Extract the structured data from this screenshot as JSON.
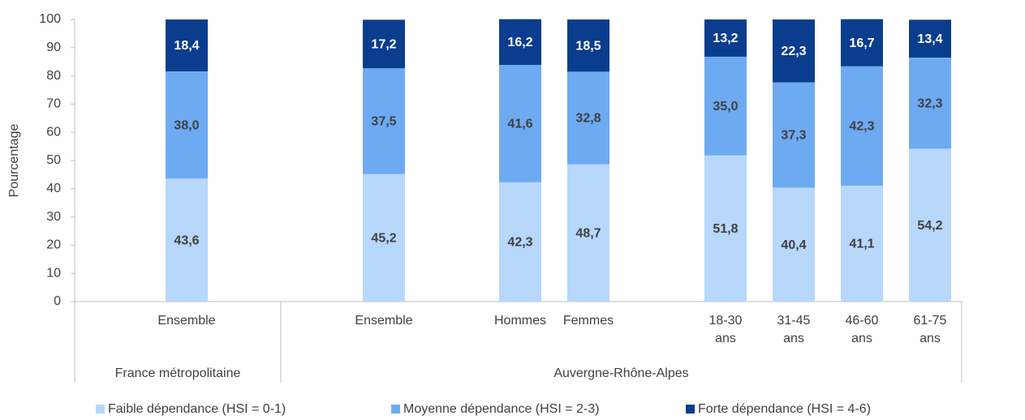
{
  "chart_data": {
    "type": "stacked_bar",
    "y_label": "Pourcentage",
    "categories": [
      "Ensemble",
      "Ensemble",
      "Hommes",
      "Femmes",
      "18-30 ans",
      "31-45 ans",
      "46-60 ans",
      "61-75 ans"
    ],
    "groups": [
      {
        "name": "France métropolitaine",
        "size": 1
      },
      {
        "name": "Auvergne-Rhône-Alpes",
        "size": 7
      }
    ],
    "series": [
      {
        "name": "Faible dépendance (HSI = 0-1)",
        "color": "#b7d7fb",
        "values": [
          43.6,
          45.2,
          42.3,
          48.7,
          51.8,
          40.4,
          41.1,
          54.2
        ],
        "value_labels": [
          "43,6",
          "45,2",
          "42,3",
          "48,7",
          "51,8",
          "40,4",
          "41,1",
          "54,2"
        ]
      },
      {
        "name": "Moyenne dépendance (HSI = 2-3)",
        "color": "#6eaaf2",
        "values": [
          38.0,
          37.5,
          41.6,
          32.8,
          35.0,
          37.3,
          42.3,
          32.3
        ],
        "value_labels": [
          "38,0",
          "37,5",
          "41,6",
          "32,8",
          "35,0",
          "37,3",
          "42,3",
          "32,3"
        ]
      },
      {
        "name": "Forte dépendance (HSI = 4-6)",
        "color": "#0b3d8e",
        "values": [
          18.4,
          17.2,
          16.2,
          18.5,
          13.2,
          22.3,
          16.7,
          13.4
        ],
        "value_labels": [
          "18,4",
          "17,2",
          "16,2",
          "18,5",
          "13,2",
          "22,3",
          "16,7",
          "13,4"
        ]
      }
    ],
    "ylim": [
      0,
      100
    ],
    "yticks": [
      0,
      10,
      20,
      30,
      40,
      50,
      60,
      70,
      80,
      90,
      100
    ],
    "legend": "bottom"
  }
}
